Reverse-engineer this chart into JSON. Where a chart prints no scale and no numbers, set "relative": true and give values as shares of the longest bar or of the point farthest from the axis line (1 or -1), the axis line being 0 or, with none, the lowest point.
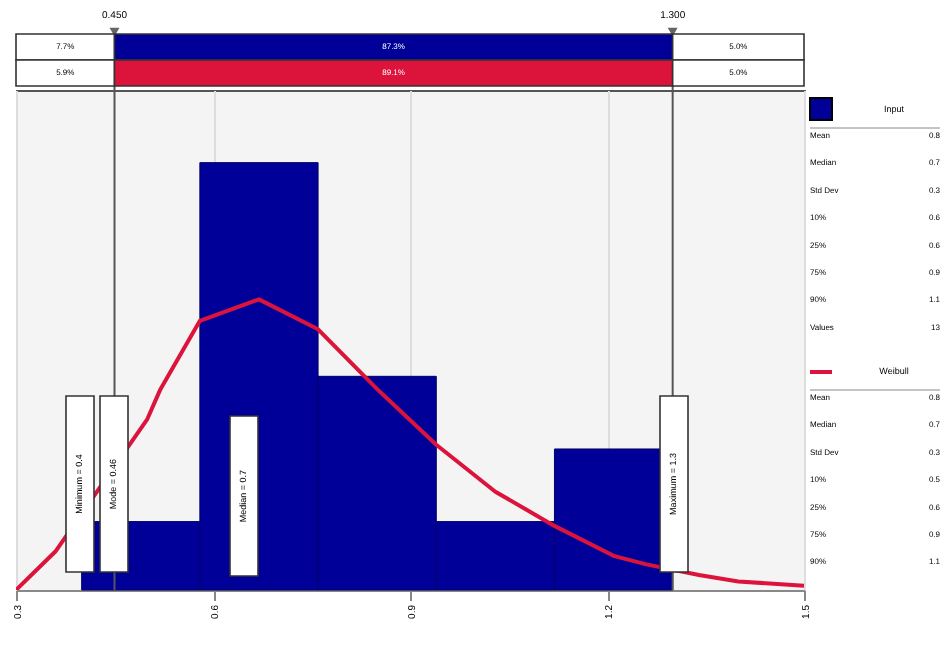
{
  "chart_data": {
    "type": "histogram",
    "relative": true,
    "bins": [
      0.4,
      0.58,
      0.76,
      0.94,
      1.12,
      1.3
    ],
    "series": [
      {
        "name": "Input",
        "type": "histogram",
        "color": "#000099",
        "values": [
          0.16,
          1,
          0.5,
          0.16,
          0.33
        ]
      },
      {
        "name": "Weibull",
        "type": "line",
        "color": "#dc143c",
        "x": [
          0.3,
          0.36,
          0.5,
          0.52,
          0.58,
          0.67,
          0.76,
          0.85,
          0.94,
          1.03,
          1.12,
          1.21,
          1.26,
          1.34,
          1.4,
          1.5
        ],
        "values": [
          0,
          0.09,
          0.4,
          0.47,
          0.63,
          0.68,
          0.61,
          0.47,
          0.34,
          0.23,
          0.15,
          0.08,
          0.06,
          0.035,
          0.02,
          0.01
        ]
      }
    ],
    "xlim": [
      0.3,
      1.5
    ],
    "xticks": [
      0.3,
      0.6,
      0.9,
      1.2,
      1.5
    ],
    "grid": "x",
    "legend": "right",
    "ref_lines": [
      {
        "axis": "x",
        "value": 0.45,
        "label": "0.450"
      },
      {
        "axis": "x",
        "value": 1.3,
        "label": "1.300"
      }
    ],
    "annotations": [
      "7.7%",
      "87.3%",
      "5.0%",
      "5.9%",
      "89.1%",
      "5.0%",
      "Minimum = 0.4",
      "Mode = 0.46",
      "Median = 0.7",
      "Maximum = 1.3",
      "Mean 0.8",
      "Median 0.7",
      "Std Dev 0.3",
      "10% 0.6",
      "25% 0.6",
      "75% 0.9",
      "90% 1.1",
      "Values 13",
      "Mean 0.8",
      "Median 0.7",
      "Std Dev 0.3",
      "10% 0.5",
      "25% 0.6",
      "75% 0.9",
      "90% 1.1"
    ]
  }
}
